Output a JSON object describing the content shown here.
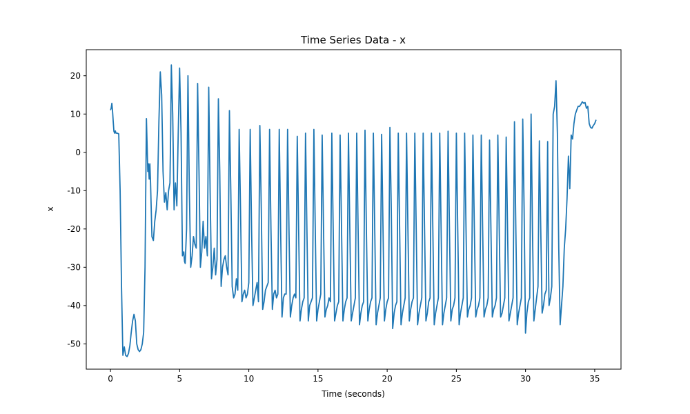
{
  "chart_data": {
    "type": "line",
    "title": "Time Series Data - x",
    "xlabel": "Time (seconds)",
    "ylabel": "x",
    "xlim": [
      -1.75,
      36.9
    ],
    "ylim": [
      -56.6,
      26.8
    ],
    "xticks": [
      0,
      5,
      10,
      15,
      20,
      25,
      30,
      35
    ],
    "yticks": [
      -50,
      -40,
      -30,
      -20,
      -10,
      0,
      10,
      20
    ],
    "grid": false,
    "legend": "none",
    "color": "#1f77b4",
    "series": [
      {
        "x": [
          0.0,
          0.05,
          0.1,
          0.15,
          0.2,
          0.25,
          0.3,
          0.35,
          0.4,
          0.5,
          0.6,
          0.7,
          0.8,
          0.9,
          1.0,
          1.1,
          1.2,
          1.3,
          1.4,
          1.5,
          1.6,
          1.7,
          1.8,
          1.9,
          2.0,
          2.1,
          2.2,
          2.3,
          2.4,
          2.5,
          2.6,
          2.7,
          2.75,
          2.8,
          2.85,
          2.9,
          3.0,
          3.1,
          3.2,
          3.3,
          3.4,
          3.5,
          3.6,
          3.7,
          3.8,
          3.9,
          4.0,
          4.1,
          4.2,
          4.3,
          4.35,
          4.4,
          4.5,
          4.6,
          4.65,
          4.7,
          4.8,
          4.9,
          5.0,
          5.1,
          5.2,
          5.3,
          5.35,
          5.4,
          5.5,
          5.6,
          5.7,
          5.8,
          5.9,
          6.0,
          6.1,
          6.2,
          6.3,
          6.4,
          6.5,
          6.6,
          6.7,
          6.8,
          6.9,
          7.0,
          7.1,
          7.2,
          7.3,
          7.4,
          7.5,
          7.6,
          7.7,
          7.8,
          7.9,
          8.0,
          8.1,
          8.2,
          8.3,
          8.4,
          8.5,
          8.6,
          8.7,
          8.8,
          8.9,
          9.0,
          9.1,
          9.2,
          9.3,
          9.4,
          9.5,
          9.6,
          9.7,
          9.8,
          9.9,
          10.0,
          10.1,
          10.2,
          10.3,
          10.4,
          10.5,
          10.6,
          10.7,
          10.8,
          10.9,
          11.0,
          11.1,
          11.2,
          11.3,
          11.4,
          11.5,
          11.6,
          11.7,
          11.8,
          11.9,
          12.0,
          12.1,
          12.2,
          12.3,
          12.4,
          12.5,
          12.6,
          12.7,
          12.8,
          12.9,
          13.0,
          13.1,
          13.2,
          13.3,
          13.4,
          13.5,
          13.6,
          13.7,
          13.8,
          13.9,
          14.0,
          14.1,
          14.2,
          14.3,
          14.4,
          14.5,
          14.6,
          14.7,
          14.8,
          14.9,
          15.0,
          15.1,
          15.2,
          15.3,
          15.4,
          15.5,
          15.6,
          15.7,
          15.8,
          15.9,
          16.0,
          16.1,
          16.2,
          16.3,
          16.4,
          16.5,
          16.6,
          16.7,
          16.8,
          16.9,
          17.0,
          17.1,
          17.2,
          17.3,
          17.4,
          17.5,
          17.6,
          17.7,
          17.8,
          17.9,
          18.0,
          18.1,
          18.2,
          18.3,
          18.4,
          18.5,
          18.6,
          18.7,
          18.8,
          18.9,
          19.0,
          19.1,
          19.2,
          19.3,
          19.4,
          19.5,
          19.6,
          19.7,
          19.8,
          19.9,
          20.0,
          20.1,
          20.2,
          20.3,
          20.4,
          20.5,
          20.6,
          20.7,
          20.8,
          20.9,
          21.0,
          21.1,
          21.2,
          21.3,
          21.4,
          21.5,
          21.6,
          21.7,
          21.8,
          21.9,
          22.0,
          22.1,
          22.2,
          22.3,
          22.4,
          22.5,
          22.6,
          22.7,
          22.8,
          22.9,
          23.0,
          23.1,
          23.2,
          23.3,
          23.4,
          23.5,
          23.6,
          23.7,
          23.8,
          23.9,
          24.0,
          24.1,
          24.2,
          24.3,
          24.4,
          24.5,
          24.6,
          24.7,
          24.8,
          24.9,
          25.0,
          25.1,
          25.2,
          25.3,
          25.4,
          25.5,
          25.6,
          25.7,
          25.8,
          25.9,
          26.0,
          26.1,
          26.2,
          26.3,
          26.4,
          26.5,
          26.6,
          26.7,
          26.8,
          26.9,
          27.0,
          27.1,
          27.2,
          27.3,
          27.4,
          27.5,
          27.6,
          27.7,
          27.8,
          27.9,
          28.0,
          28.1,
          28.2,
          28.3,
          28.4,
          28.5,
          28.6,
          28.7,
          28.8,
          28.9,
          29.0,
          29.1,
          29.2,
          29.3,
          29.4,
          29.5,
          29.6,
          29.7,
          29.8,
          29.9,
          30.0,
          30.1,
          30.2,
          30.3,
          30.4,
          30.5,
          30.6,
          30.7,
          30.8,
          30.9,
          31.0,
          31.1,
          31.2,
          31.3,
          31.4,
          31.5,
          31.6,
          31.65,
          31.7,
          31.8,
          31.9,
          32.0,
          32.1,
          32.2,
          32.3,
          32.4,
          32.5,
          32.6,
          32.7,
          32.8,
          32.9,
          33.0,
          33.1,
          33.2,
          33.3,
          33.4,
          33.5,
          33.6,
          33.7,
          33.8,
          33.9,
          34.0,
          34.1,
          34.2,
          34.3,
          34.4,
          34.5,
          34.6,
          34.7,
          34.8,
          34.9,
          35.0,
          35.1
        ],
        "values": [
          11.0,
          11.5,
          12.8,
          10.8,
          8.0,
          5.5,
          5.0,
          5.6,
          5.0,
          5.0,
          4.8,
          -10,
          -35,
          -53.0,
          -50.8,
          -53.0,
          -53.3,
          -52.5,
          -50.5,
          -47,
          -44,
          -42.3,
          -44,
          -50,
          -51.5,
          -52,
          -51.5,
          -50,
          -47,
          -30,
          8.8,
          -5,
          -3,
          -7,
          -3,
          -8,
          -22,
          -23,
          -18,
          -15,
          -10,
          8,
          21.0,
          15,
          -5,
          -13,
          -10.5,
          -15,
          -10,
          -8,
          5,
          22.8,
          10,
          -15,
          -11,
          -8,
          -14,
          5,
          22.0,
          5,
          -27,
          -26,
          -28.5,
          -29,
          -20,
          20.0,
          -10,
          -30,
          -27,
          -22,
          -24,
          -25,
          18.0,
          -5,
          -30,
          -26,
          -18,
          -25,
          -22,
          -27,
          17.0,
          -10,
          -33,
          -30,
          -25,
          -32,
          -28,
          14.0,
          -5,
          -35,
          -30,
          -28,
          -27,
          -30,
          -32,
          10.9,
          -10,
          -35,
          -38,
          -37,
          -33,
          -36,
          6.0,
          -15,
          -39,
          -37,
          -36,
          -38,
          -37,
          -34,
          6.0,
          -20,
          -40,
          -38,
          -36,
          -34,
          -39,
          7.0,
          -15,
          -41,
          -39,
          -36,
          -35,
          -34,
          6.0,
          -20,
          -41,
          -37,
          -36,
          -38,
          -37,
          6.0,
          -20,
          -43,
          -38,
          -37,
          -37,
          6.0,
          -20,
          -43,
          -40,
          -38,
          -37,
          -38,
          4.2,
          -20,
          -44,
          -41,
          -39,
          -38,
          5.0,
          -20,
          -44,
          -40,
          -39,
          -38,
          6.0,
          -20,
          -44,
          -41,
          -39,
          -37,
          4.5,
          -20,
          -43,
          -41,
          -40,
          -38,
          -39,
          5.0,
          -20,
          -44,
          -42,
          -40,
          -39,
          4.5,
          -20,
          -44,
          -41,
          -39,
          -38,
          5.0,
          -20,
          -44,
          -42,
          -40,
          -38,
          5.0,
          -20,
          -45,
          -42,
          -40,
          -39,
          5.8,
          -20,
          -44,
          -41,
          -39,
          -38,
          5.0,
          -20,
          -45,
          -42,
          -40,
          -38,
          4.7,
          -20,
          -44,
          -41,
          -39,
          -38,
          6.5,
          -15,
          -46,
          -42,
          -40,
          -39,
          5.0,
          -20,
          -45,
          -42,
          -40,
          -38,
          5.0,
          -20,
          -44,
          -41,
          -39,
          -38,
          5.0,
          -20,
          -45,
          -42,
          -40,
          -38,
          5.0,
          -20,
          -44,
          -42,
          -39,
          -38,
          5.0,
          -20,
          -45,
          -42,
          -40,
          -38,
          5.0,
          -20,
          -45,
          -42,
          -40,
          -38,
          5.5,
          -20,
          -44,
          -41,
          -40,
          -38,
          5.0,
          -20,
          -45,
          -42,
          -40,
          -38,
          5.0,
          -20,
          -43,
          -41,
          -40,
          -38,
          4.5,
          -20,
          -43,
          -41,
          -40,
          -38,
          4.5,
          -20,
          -43,
          -41,
          -40,
          -38,
          3.2,
          -20,
          -43,
          -41,
          -40,
          -38,
          4.5,
          -20,
          -43,
          -42,
          -40,
          -38,
          4.0,
          -20,
          -44,
          -42,
          -40,
          -38,
          8.0,
          -20,
          -45,
          -42,
          -40,
          -38,
          8.7,
          -15,
          -47.2,
          -42,
          -39,
          -38,
          10.0,
          -20,
          -44,
          -41,
          -38,
          -35,
          3.0,
          -20,
          -42,
          -40,
          -37,
          -36,
          2.8,
          -25,
          -40,
          -38,
          -35,
          10.0,
          12,
          18.7,
          5,
          -25,
          -45,
          -40,
          -35,
          -25,
          -20,
          -12,
          -1,
          -9.5,
          4.5,
          3.5,
          7.5,
          10,
          11,
          12,
          12,
          12.5,
          13.2,
          12.8,
          13,
          11.5,
          12,
          7.5,
          6.5,
          6.3,
          7,
          7.5,
          8.5
        ]
      }
    ]
  }
}
